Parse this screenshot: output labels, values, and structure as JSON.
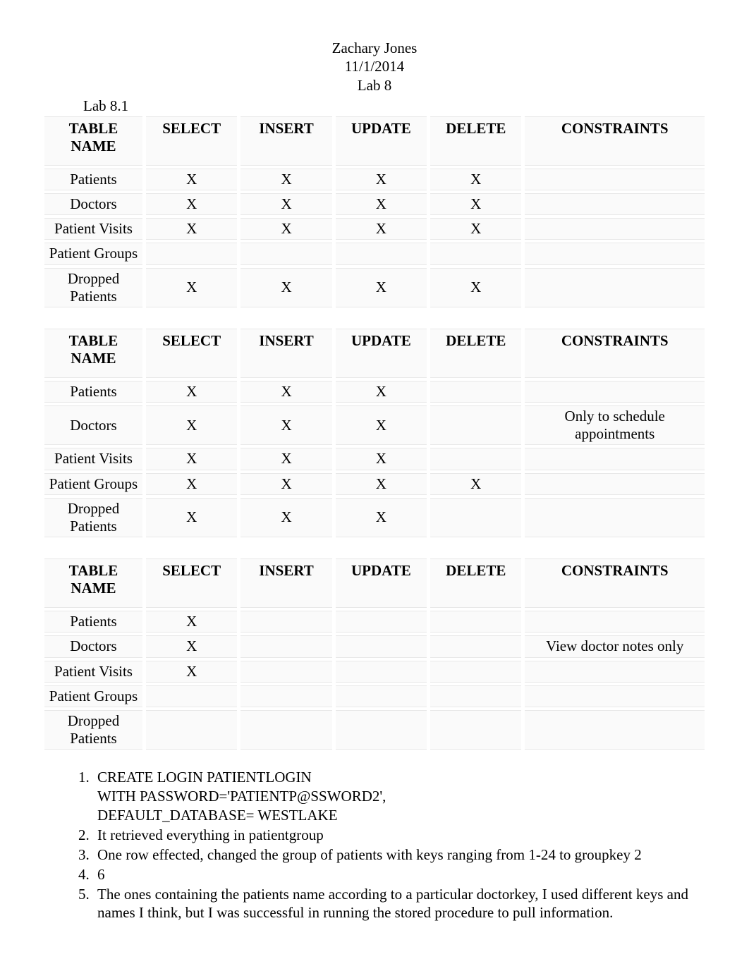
{
  "header": {
    "name": "Zachary Jones",
    "date": "11/1/2014",
    "lab": "Lab 8"
  },
  "section_label": "Lab 8.1",
  "columns": {
    "name": "TABLE NAME",
    "select": "SELECT",
    "insert": "INSERT",
    "update": "UPDATE",
    "delete": "DELETE",
    "constraints": "CONSTRAINTS"
  },
  "tables": [
    {
      "rows": [
        {
          "name": "Patients",
          "select": "X",
          "insert": "X",
          "update": "X",
          "delete": "X",
          "constraints": ""
        },
        {
          "name": "Doctors",
          "select": "X",
          "insert": "X",
          "update": "X",
          "delete": "X",
          "constraints": ""
        },
        {
          "name": "Patient Visits",
          "select": "X",
          "insert": "X",
          "update": "X",
          "delete": "X",
          "constraints": ""
        },
        {
          "name": "Patient Groups",
          "select": "",
          "insert": "",
          "update": "",
          "delete": "",
          "constraints": ""
        },
        {
          "name": "Dropped Patients",
          "select": "X",
          "insert": "X",
          "update": "X",
          "delete": "X",
          "constraints": ""
        }
      ]
    },
    {
      "rows": [
        {
          "name": "Patients",
          "select": "X",
          "insert": "X",
          "update": "X",
          "delete": "",
          "constraints": ""
        },
        {
          "name": "Doctors",
          "select": "X",
          "insert": "X",
          "update": "X",
          "delete": "",
          "constraints": "Only to schedule appointments"
        },
        {
          "name": "Patient Visits",
          "select": "X",
          "insert": "X",
          "update": "X",
          "delete": "",
          "constraints": ""
        },
        {
          "name": "Patient Groups",
          "select": "X",
          "insert": "X",
          "update": "X",
          "delete": "X",
          "constraints": ""
        },
        {
          "name": "Dropped Patients",
          "select": "X",
          "insert": "X",
          "update": "X",
          "delete": "",
          "constraints": ""
        }
      ]
    },
    {
      "rows": [
        {
          "name": "Patients",
          "select": "X",
          "insert": "",
          "update": "",
          "delete": "",
          "constraints": ""
        },
        {
          "name": "Doctors",
          "select": "X",
          "insert": "",
          "update": "",
          "delete": "",
          "constraints": "View doctor notes only"
        },
        {
          "name": "Patient Visits",
          "select": "X",
          "insert": "",
          "update": "",
          "delete": "",
          "constraints": ""
        },
        {
          "name": "Patient Groups",
          "select": "",
          "insert": "",
          "update": "",
          "delete": "",
          "constraints": ""
        },
        {
          "name": "Dropped Patients",
          "select": "",
          "insert": "",
          "update": "",
          "delete": "",
          "constraints": ""
        }
      ]
    }
  ],
  "answers": [
    "CREATE LOGIN PATIENTLOGIN\nWITH PASSWORD='PATIENTP@SSWORD2',\nDEFAULT_DATABASE= WESTLAKE",
    "It retrieved everything in patientgroup",
    "One row effected, changed the group of patients with keys ranging from 1-24 to groupkey 2",
    "6",
    "The ones containing the patients name according to a particular doctorkey, I used different keys and names I think, but I was successful in running the stored procedure to pull information."
  ]
}
